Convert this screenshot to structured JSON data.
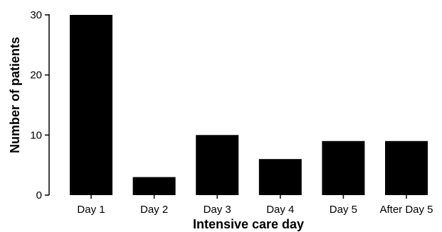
{
  "chart_data": {
    "type": "bar",
    "title": "",
    "xlabel": "Intensive care day",
    "ylabel": "Number of patients",
    "categories": [
      "Day 1",
      "Day 2",
      "Day 3",
      "Day 4",
      "Day 5",
      "After Day 5"
    ],
    "values": [
      30,
      3,
      10,
      6,
      9,
      9
    ],
    "ylim": [
      0,
      30
    ],
    "yticks": [
      0,
      10,
      20,
      30
    ],
    "grid": false,
    "legend": "none",
    "bar_color": "#000000"
  }
}
